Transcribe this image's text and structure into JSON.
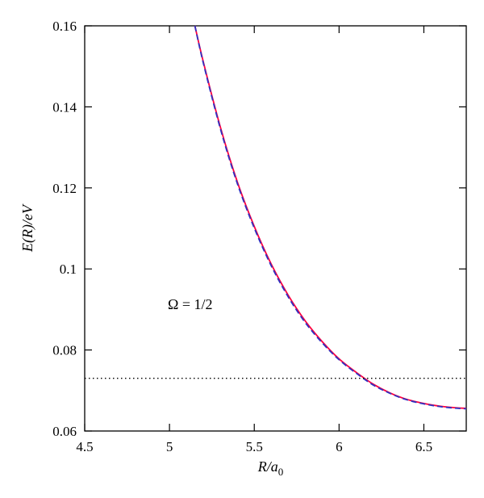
{
  "chart_data": {
    "type": "line",
    "xlabel": {
      "main": "R/a",
      "sub": "0"
    },
    "ylabel": "E(R)/eV",
    "xlim": [
      4.5,
      6.75
    ],
    "ylim": [
      0.06,
      0.16
    ],
    "x_ticks": [
      4.5,
      5,
      5.5,
      6,
      6.5
    ],
    "x_tick_labels": [
      "4.5",
      "5",
      "5.5",
      "6",
      "6.5"
    ],
    "y_ticks": [
      0.06,
      0.08,
      0.1,
      0.12,
      0.14,
      0.16
    ],
    "y_tick_labels": [
      "0.06",
      "0.08",
      "0.1",
      "0.12",
      "0.14",
      "0.16"
    ],
    "annotation": "Ω = 1/2",
    "grid": false,
    "series": [
      {
        "style": "solid",
        "color": "#ff0040",
        "x": [
          5.15,
          5.2,
          5.3,
          5.4,
          5.5,
          5.6,
          5.7,
          5.8,
          5.9,
          6.0,
          6.1,
          6.2,
          6.3,
          6.4,
          6.5,
          6.6,
          6.7,
          6.75
        ],
        "y": [
          0.16,
          0.151,
          0.135,
          0.1215,
          0.1105,
          0.1012,
          0.0935,
          0.0872,
          0.0821,
          0.0778,
          0.0745,
          0.0716,
          0.0694,
          0.0678,
          0.0668,
          0.0661,
          0.0657,
          0.0656
        ]
      },
      {
        "style": "dashed",
        "color": "#3030c0",
        "x": [
          5.15,
          5.2,
          5.3,
          5.4,
          5.5,
          5.6,
          5.7,
          5.8,
          5.9,
          6.0,
          6.1,
          6.2,
          6.3,
          6.4,
          6.5,
          6.6,
          6.7,
          6.75
        ],
        "y": [
          0.16,
          0.1507,
          0.1346,
          0.1211,
          0.1101,
          0.1008,
          0.0931,
          0.0868,
          0.0818,
          0.0776,
          0.0743,
          0.0714,
          0.0693,
          0.0677,
          0.0667,
          0.066,
          0.0656,
          0.0655
        ]
      },
      {
        "style": "dotted",
        "color": "#000000",
        "x": [
          4.5,
          6.75
        ],
        "y": [
          0.073,
          0.073
        ]
      }
    ]
  }
}
